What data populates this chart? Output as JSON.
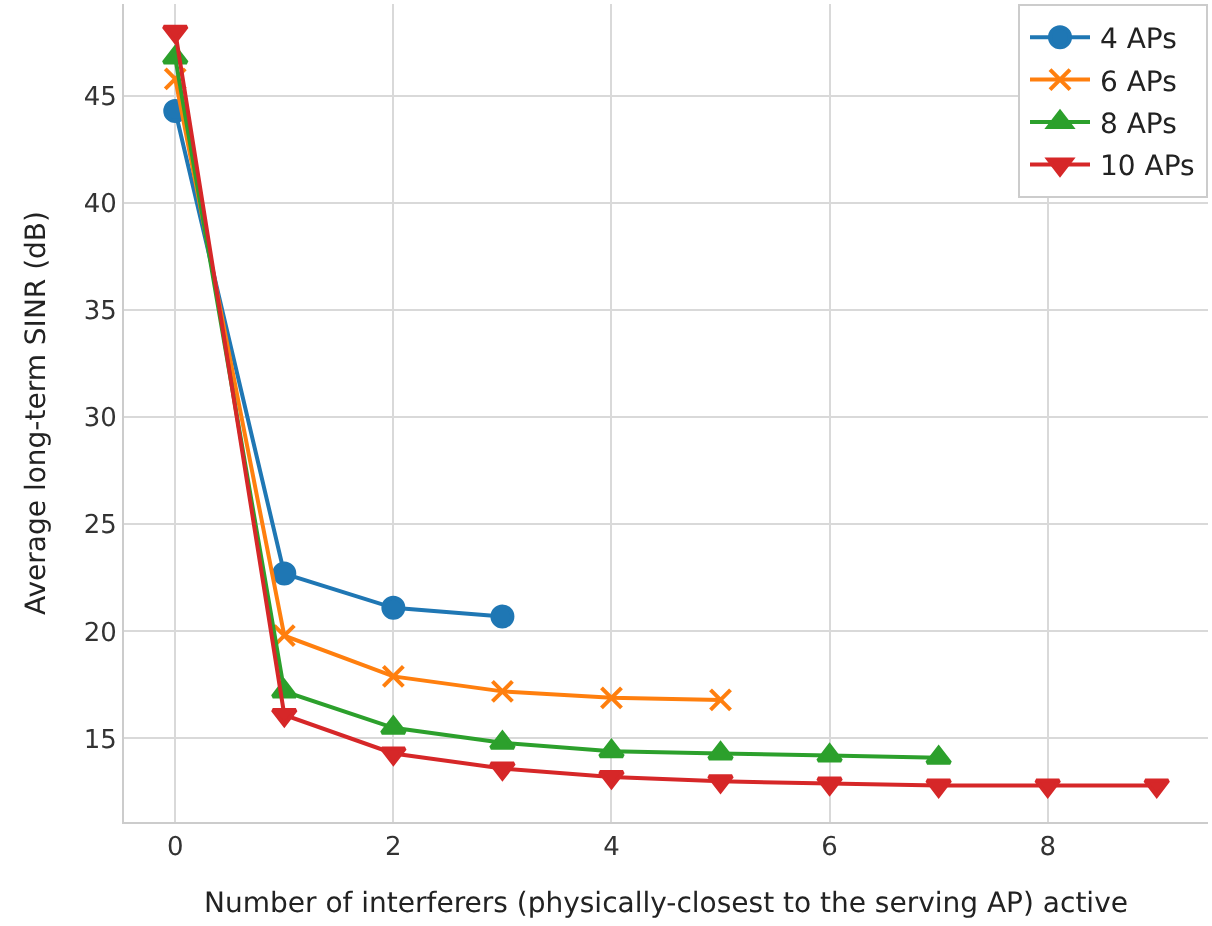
{
  "chart_data": {
    "type": "line",
    "xlabel": "Number of interferers (physically-closest to the serving AP) active",
    "ylabel": "Average long-term SINR (dB)",
    "xlim": [
      -0.47,
      9.47
    ],
    "xticks": [
      0,
      2,
      4,
      6,
      8
    ],
    "ylim": [
      11.1,
      49.3
    ],
    "yticks": [
      15,
      20,
      25,
      30,
      35,
      40,
      45
    ],
    "grid": true,
    "legend": "top right",
    "series": [
      {
        "name": "4 APs",
        "color": "#1f77b4",
        "marker": "circle",
        "x": [
          0,
          1,
          2,
          3
        ],
        "values": [
          44.3,
          22.7,
          21.1,
          20.7
        ]
      },
      {
        "name": "6 APs",
        "color": "#ff7f0e",
        "marker": "cross",
        "x": [
          0,
          1,
          2,
          3,
          4,
          5
        ],
        "values": [
          45.8,
          19.8,
          17.9,
          17.2,
          16.9,
          16.8
        ]
      },
      {
        "name": "8 APs",
        "color": "#2ca02c",
        "marker": "triangle",
        "x": [
          0,
          1,
          2,
          3,
          4,
          5,
          6,
          7
        ],
        "values": [
          46.8,
          17.2,
          15.5,
          14.8,
          14.4,
          14.3,
          14.2,
          14.1
        ]
      },
      {
        "name": "10 APs",
        "color": "#d62728",
        "marker": "triangle-down",
        "x": [
          0,
          1,
          2,
          3,
          4,
          5,
          6,
          7,
          8,
          9
        ],
        "values": [
          48.0,
          16.1,
          14.3,
          13.6,
          13.2,
          13.0,
          12.9,
          12.8,
          12.8,
          12.8
        ]
      }
    ]
  }
}
